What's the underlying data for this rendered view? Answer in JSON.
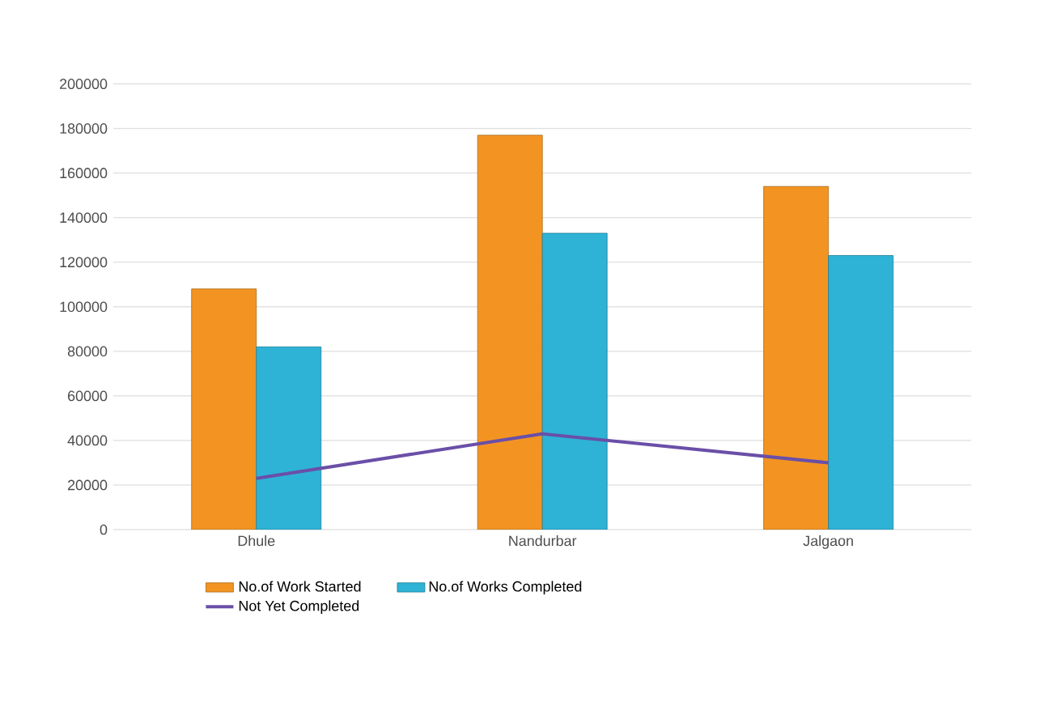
{
  "chart_data": {
    "type": "bar",
    "categories": [
      "Dhule",
      "Nandurbar",
      "Jalgaon"
    ],
    "series": [
      {
        "name": "No.of Work Started",
        "color": "#f39422",
        "values": [
          108000,
          177000,
          154000
        ]
      },
      {
        "name": "No.of Works Completed",
        "color": "#2eb3d6",
        "values": [
          82000,
          133000,
          123000
        ]
      },
      {
        "name": "Not Yet Completed",
        "type": "line",
        "color": "#6a4fa8",
        "values": [
          23000,
          43000,
          30000
        ]
      }
    ],
    "ylim": [
      0,
      200000
    ],
    "yticks": [
      0,
      20000,
      40000,
      60000,
      80000,
      100000,
      120000,
      140000,
      160000,
      180000,
      200000
    ],
    "grid": "y",
    "legend": "bottom",
    "marker": "none"
  }
}
